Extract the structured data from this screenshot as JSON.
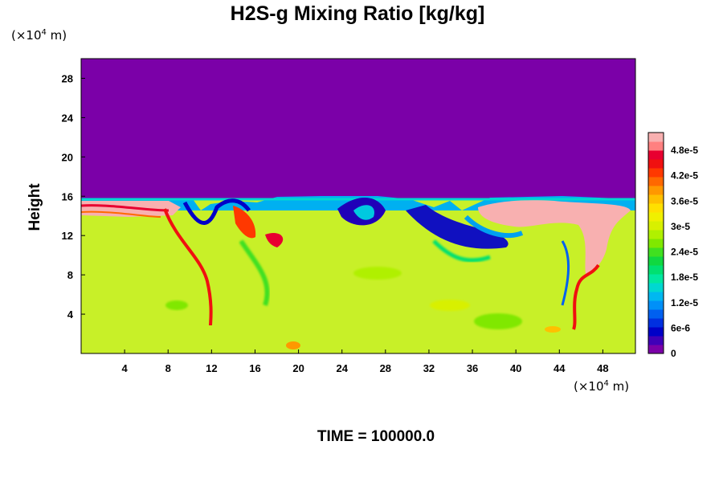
{
  "chart_data": {
    "type": "heatmap",
    "title": "H2S-g Mixing Ratio [kg/kg]",
    "ylabel": "Height",
    "xlabel": "",
    "x_unit": {
      "prefix": "(×10",
      "exponent": "4",
      "suffix": " m)"
    },
    "y_unit": {
      "prefix": "(×10",
      "exponent": "4",
      "suffix": " m)"
    },
    "xlim": [
      0,
      51
    ],
    "ylim": [
      0,
      30
    ],
    "x_ticks": [
      4,
      8,
      12,
      16,
      20,
      24,
      28,
      32,
      36,
      40,
      44,
      48
    ],
    "y_ticks": [
      4,
      8,
      12,
      16,
      20,
      24,
      28
    ],
    "colorbar": {
      "ticks": [
        "0",
        "6e-6",
        "1.2e-5",
        "1.8e-5",
        "2.4e-5",
        "3e-5",
        "3.6e-5",
        "4.2e-5",
        "4.8e-5"
      ],
      "range": [
        0,
        5.2e-05
      ],
      "colors": [
        "#7b00a8",
        "#4000b8",
        "#0000c8",
        "#0030e0",
        "#0060f0",
        "#0090f8",
        "#00b8f0",
        "#00d8d0",
        "#00e8a0",
        "#00e070",
        "#10d840",
        "#40e020",
        "#80e800",
        "#b0f000",
        "#d8f000",
        "#f0f000",
        "#ffe000",
        "#ffc000",
        "#ff9800",
        "#ff6800",
        "#ff3800",
        "#f01010",
        "#e80030",
        "#ff8080",
        "#f8b0b0"
      ]
    },
    "field_description_values": {
      "upper_layer_value": 0,
      "lower_layer_value": 3.2e-05,
      "interface_height": 15.5
    }
  },
  "footer": {
    "time_label": "TIME = 100000.0"
  }
}
